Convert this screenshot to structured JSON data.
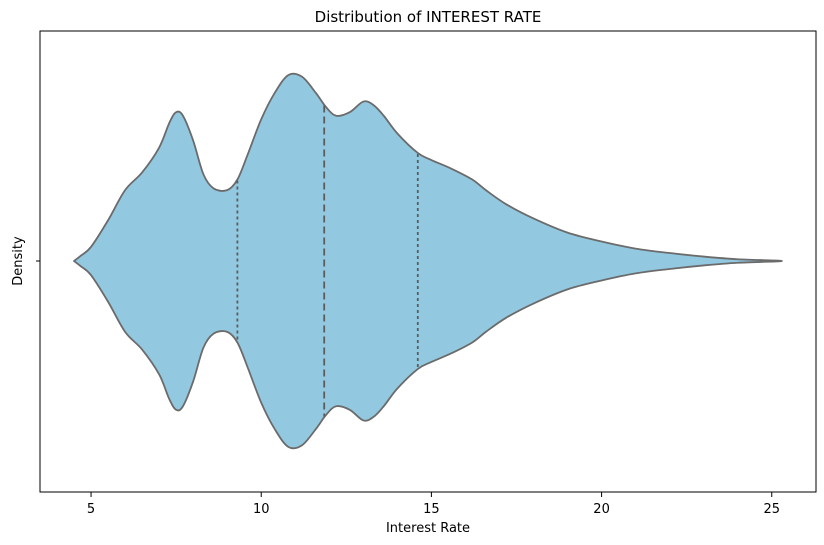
{
  "chart_data": {
    "type": "violin",
    "title": "Distribution of INTEREST RATE",
    "xlabel": "Interest Rate",
    "ylabel": "Density",
    "xlim": [
      3.5,
      26.3
    ],
    "x_ticks": [
      5,
      10,
      15,
      20,
      25
    ],
    "x_tick_labels": [
      "5",
      "10",
      "15",
      "20",
      "25"
    ],
    "grid": false,
    "colors": {
      "fill": "#92C8E0",
      "edge": "#6b6b6b",
      "quartile": "#5c5c5c"
    },
    "density_profile": {
      "x": [
        4.5,
        4.7,
        5.0,
        5.5,
        6.0,
        6.5,
        7.0,
        7.3,
        7.5,
        7.7,
        8.0,
        8.3,
        8.6,
        9.0,
        9.3,
        9.6,
        10.0,
        10.4,
        10.8,
        11.2,
        11.6,
        11.9,
        12.2,
        12.6,
        13.0,
        13.3,
        13.6,
        14.0,
        14.6,
        15.0,
        15.6,
        16.2,
        16.6,
        17.2,
        18.0,
        19.0,
        20.0,
        21.0,
        22.0,
        23.0,
        24.0,
        25.3
      ],
      "half_width": [
        0.0,
        0.03,
        0.08,
        0.23,
        0.4,
        0.5,
        0.64,
        0.78,
        0.84,
        0.82,
        0.68,
        0.49,
        0.41,
        0.4,
        0.46,
        0.6,
        0.8,
        0.95,
        1.05,
        1.04,
        0.95,
        0.87,
        0.82,
        0.84,
        0.9,
        0.88,
        0.82,
        0.72,
        0.61,
        0.57,
        0.52,
        0.46,
        0.4,
        0.32,
        0.24,
        0.16,
        0.11,
        0.07,
        0.045,
        0.025,
        0.01,
        0.0
      ]
    },
    "quartiles": {
      "q1": 9.3,
      "median": 11.85,
      "q3": 14.6
    }
  }
}
